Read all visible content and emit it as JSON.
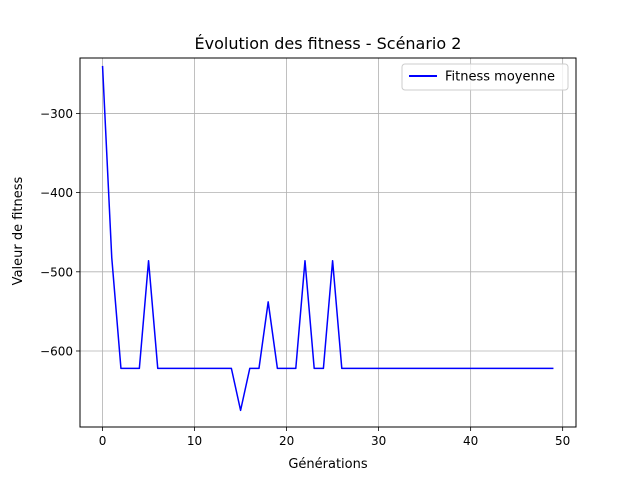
{
  "chart_data": {
    "type": "line",
    "title": "Évolution des fitness - Scénario 2",
    "xlabel": "Générations",
    "ylabel": "Valeur de fitness",
    "xlim": [
      -2.45,
      51.45
    ],
    "ylim": [
      -696,
      -230
    ],
    "xticks": [
      0,
      10,
      20,
      30,
      40,
      50
    ],
    "xtick_labels": [
      "0",
      "10",
      "20",
      "30",
      "40",
      "50"
    ],
    "yticks": [
      -300,
      -400,
      -500,
      -600
    ],
    "ytick_labels": [
      "−300",
      "−400",
      "−500",
      "−600"
    ],
    "grid": true,
    "legend": "top-right",
    "colors": {
      "line": "#0000ff",
      "grid": "#b0b0b0",
      "axes": "#000000"
    },
    "series": [
      {
        "name": "Fitness moyenne",
        "color": "#0000ff",
        "x": [
          0,
          1,
          2,
          3,
          4,
          5,
          6,
          7,
          8,
          9,
          10,
          11,
          12,
          13,
          14,
          15,
          16,
          17,
          18,
          19,
          20,
          21,
          22,
          23,
          24,
          25,
          26,
          27,
          28,
          29,
          30,
          31,
          32,
          33,
          34,
          35,
          36,
          37,
          38,
          39,
          40,
          41,
          42,
          43,
          44,
          45,
          46,
          47,
          48,
          49
        ],
        "values": [
          -240,
          -482,
          -622,
          -622,
          -622,
          -486,
          -622,
          -622,
          -622,
          -622,
          -622,
          -622,
          -622,
          -622,
          -622,
          -675,
          -622,
          -622,
          -538,
          -622,
          -622,
          -622,
          -486,
          -622,
          -622,
          -486,
          -622,
          -622,
          -622,
          -622,
          -622,
          -622,
          -622,
          -622,
          -622,
          -622,
          -622,
          -622,
          -622,
          -622,
          -622,
          -622,
          -622,
          -622,
          -622,
          -622,
          -622,
          -622,
          -622,
          -622
        ]
      }
    ]
  }
}
